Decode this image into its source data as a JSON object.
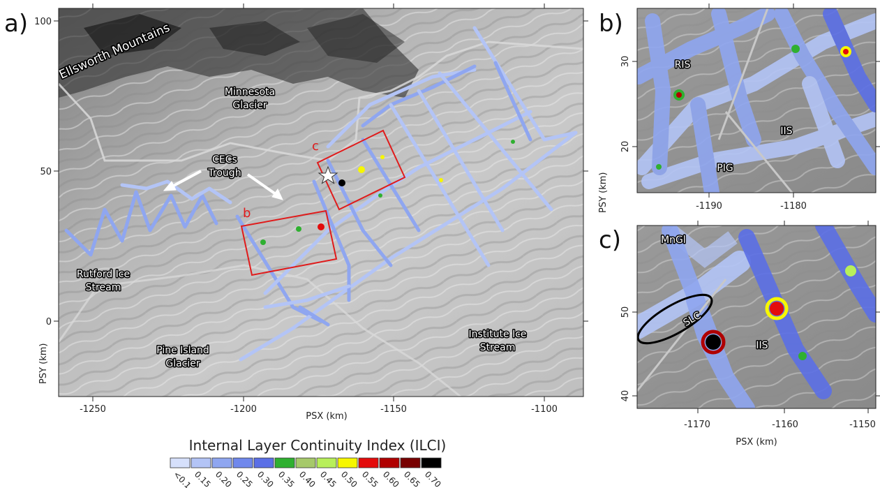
{
  "panels": {
    "a": {
      "label": "a)",
      "x_label": "PSX (km)",
      "y_label": "PSY (km)",
      "x_ticks": [
        "-1250",
        "-1200",
        "-1150",
        "-1100"
      ],
      "y_ticks": [
        "100",
        "50",
        "0"
      ],
      "places": {
        "ellsworth": "Ellsworth Mountains",
        "minnesota_1": "Minnesota",
        "minnesota_2": "Glacier",
        "cecs_1": "CECs",
        "cecs_2": "Trough",
        "rutford_1": "Rutford Ice",
        "rutford_2": "Stream",
        "pig_1": "Pine Island",
        "pig_2": "Glacier",
        "institute_1": "Institute Ice",
        "institute_2": "Stream"
      },
      "box_labels": {
        "b": "b",
        "c": "c"
      }
    },
    "b": {
      "label": "b)",
      "x_label": "PSX (km)",
      "y_label": "PSY (km)",
      "x_ticks": [
        "-1190",
        "-1180"
      ],
      "y_ticks": [
        "30",
        "20"
      ],
      "places": {
        "ris": "RIS",
        "iis": "IIS",
        "pig": "PIG"
      }
    },
    "c": {
      "label": "c)",
      "x_label": "PSX (km)",
      "y_label": "PSY (km)",
      "x_ticks": [
        "-1170",
        "-1160",
        "-1150"
      ],
      "y_ticks": [
        "50",
        "40"
      ],
      "places": {
        "mngl": "MnGl",
        "slc": "SLC",
        "iis": "IIS"
      }
    }
  },
  "legend": {
    "title": "Internal Layer Continuity Index (ILCI)",
    "bins": [
      {
        "label": "<0.1",
        "color": "#d6e0fb"
      },
      {
        "label": "0.15",
        "color": "#b3c4f6"
      },
      {
        "label": "0.20",
        "color": "#8fa6f0"
      },
      {
        "label": "0.25",
        "color": "#7088ec"
      },
      {
        "label": "0.30",
        "color": "#5b6fe6"
      },
      {
        "label": "0.35",
        "color": "#2fb030"
      },
      {
        "label": "0.40",
        "color": "#a6c96a"
      },
      {
        "label": "0.45",
        "color": "#b8ef5a"
      },
      {
        "label": "0.50",
        "color": "#f7f700"
      },
      {
        "label": "0.55",
        "color": "#e30b0b"
      },
      {
        "label": "0.60",
        "color": "#b00000"
      },
      {
        "label": "0.65",
        "color": "#780000"
      },
      {
        "label": "0.70",
        "color": "#000000"
      }
    ]
  }
}
